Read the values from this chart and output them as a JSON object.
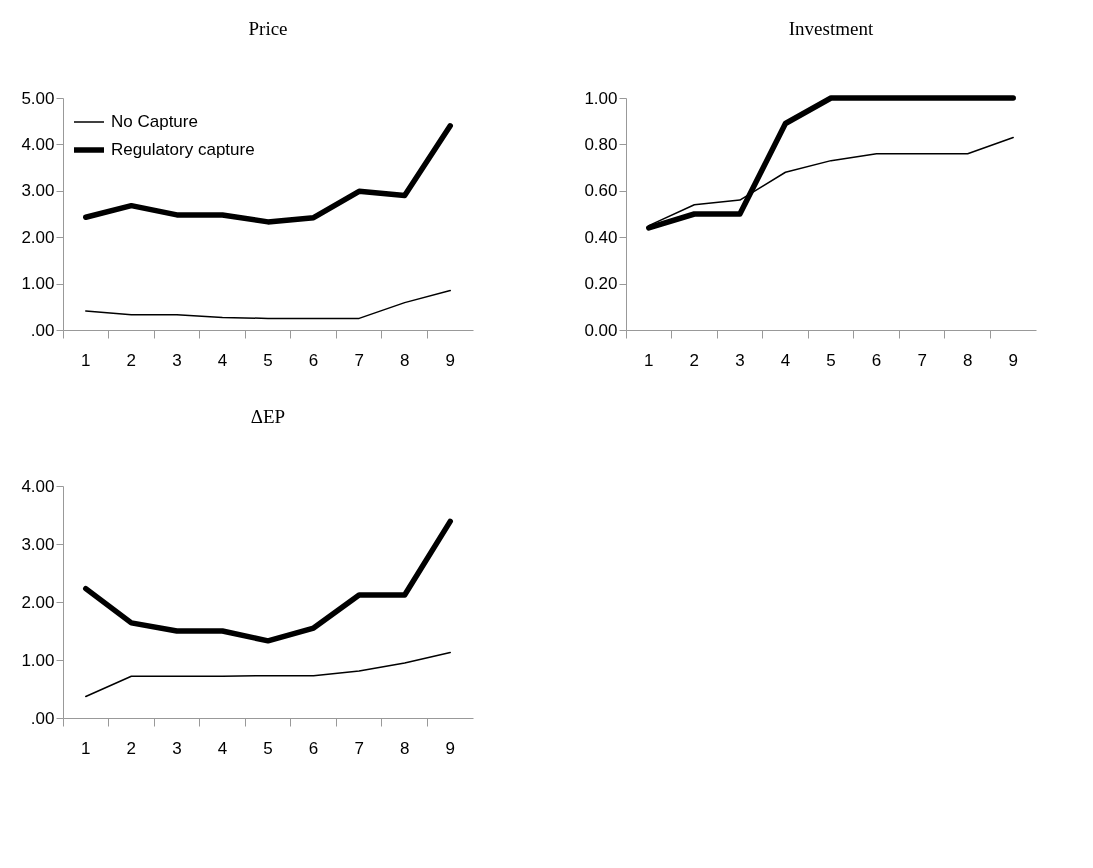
{
  "chart_data": [
    {
      "type": "line",
      "title": "Price",
      "categories": [
        "1",
        "2",
        "3",
        "4",
        "5",
        "6",
        "7",
        "8",
        "9"
      ],
      "legend": "top left",
      "ylim": [
        0,
        5
      ],
      "yticks": [
        {
          "value": 0,
          "label": ".00"
        },
        {
          "value": 1,
          "label": "1.00"
        },
        {
          "value": 2,
          "label": "2.00"
        },
        {
          "value": 3,
          "label": "3.00"
        },
        {
          "value": 4,
          "label": "4.00"
        },
        {
          "value": 5,
          "label": "5.00"
        }
      ],
      "grid": false,
      "series": [
        {
          "name": "No Capture",
          "color": "#000000",
          "values": [
            0.41,
            0.33,
            0.33,
            0.27,
            0.25,
            0.25,
            0.25,
            0.59,
            0.85
          ]
        },
        {
          "name": "Regulatory capture",
          "color": "#000000",
          "values": [
            2.43,
            2.68,
            2.48,
            2.48,
            2.33,
            2.42,
            2.99,
            2.9,
            4.4
          ]
        }
      ]
    },
    {
      "type": "line",
      "title": "Investment",
      "categories": [
        "1",
        "2",
        "3",
        "4",
        "5",
        "6",
        "7",
        "8",
        "9"
      ],
      "ylim": [
        0,
        1
      ],
      "yticks": [
        {
          "value": 0,
          "label": "0.00"
        },
        {
          "value": 0.2,
          "label": "0.20"
        },
        {
          "value": 0.4,
          "label": "0.40"
        },
        {
          "value": 0.6,
          "label": "0.60"
        },
        {
          "value": 0.8,
          "label": "0.80"
        },
        {
          "value": 1,
          "label": "1.00"
        }
      ],
      "grid": false,
      "series": [
        {
          "color": "#000000",
          "values": [
            0.45,
            0.54,
            0.56,
            0.68,
            0.73,
            0.76,
            0.76,
            0.76,
            0.83
          ]
        },
        {
          "color": "#000000",
          "values": [
            0.44,
            0.5,
            0.5,
            0.89,
            1,
            1,
            1,
            1,
            1
          ]
        }
      ]
    },
    {
      "type": "line",
      "title": "ΔEP",
      "categories": [
        "1",
        "2",
        "3",
        "4",
        "5",
        "6",
        "7",
        "8",
        "9"
      ],
      "ylim": [
        0,
        4
      ],
      "yticks": [
        {
          "value": 0,
          "label": ".00"
        },
        {
          "value": 1,
          "label": "1.00"
        },
        {
          "value": 2,
          "label": "2.00"
        },
        {
          "value": 3,
          "label": "3.00"
        },
        {
          "value": 4,
          "label": "4.00"
        }
      ],
      "grid": false,
      "series": [
        {
          "color": "#000000",
          "values": [
            0.37,
            0.72,
            0.72,
            0.72,
            0.73,
            0.73,
            0.81,
            0.95,
            1.13
          ]
        },
        {
          "color": "#000000",
          "values": [
            2.23,
            1.64,
            1.5,
            1.5,
            1.33,
            1.55,
            2.12,
            2.12,
            3.39
          ]
        }
      ]
    }
  ]
}
